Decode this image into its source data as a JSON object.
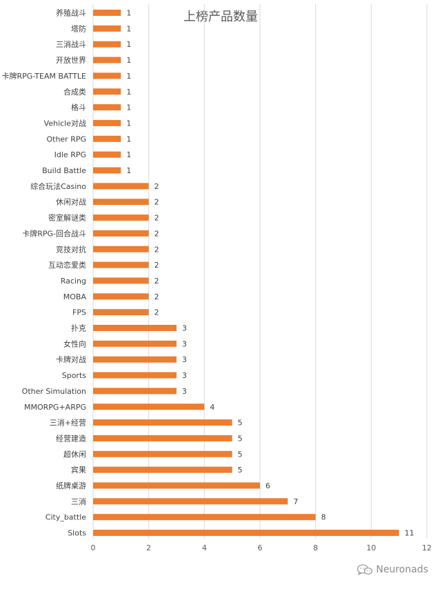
{
  "chart_data": {
    "type": "bar",
    "orientation": "horizontal",
    "title": "上榜产品数量",
    "categories": [
      "养殖战斗",
      "塔防",
      "三消战斗",
      "开放世界",
      "卡牌RPG-TEAM BATTLE",
      "合成类",
      "格斗",
      "Vehicle对战",
      "Other RPG",
      "Idle RPG",
      "Build Battle",
      "综合玩法Casino",
      "休闲对战",
      "密室解谜类",
      "卡牌RPG-回合战斗",
      "竞技对抗",
      "互动恋爱类",
      "Racing",
      "MOBA",
      "FPS",
      "扑克",
      "女性向",
      "卡牌对战",
      "Sports",
      "Other Simulation",
      "MMORPG+ARPG",
      "三消+经营",
      "经营建造",
      "超休闲",
      "宾果",
      "纸牌桌游",
      "三消",
      "City_battle",
      "Slots"
    ],
    "values": [
      1,
      1,
      1,
      1,
      1,
      1,
      1,
      1,
      1,
      1,
      1,
      2,
      2,
      2,
      2,
      2,
      2,
      2,
      2,
      2,
      3,
      3,
      3,
      3,
      3,
      4,
      5,
      5,
      5,
      5,
      6,
      7,
      8,
      11
    ],
    "xlim": [
      0,
      12
    ],
    "xticks": [
      0,
      2,
      4,
      6,
      8,
      10,
      12
    ],
    "grid": "vertical",
    "bar_color": "#ED7D31",
    "data_labels": true
  },
  "watermark": {
    "icon": "wechat-icon",
    "text": "Neuronads"
  }
}
